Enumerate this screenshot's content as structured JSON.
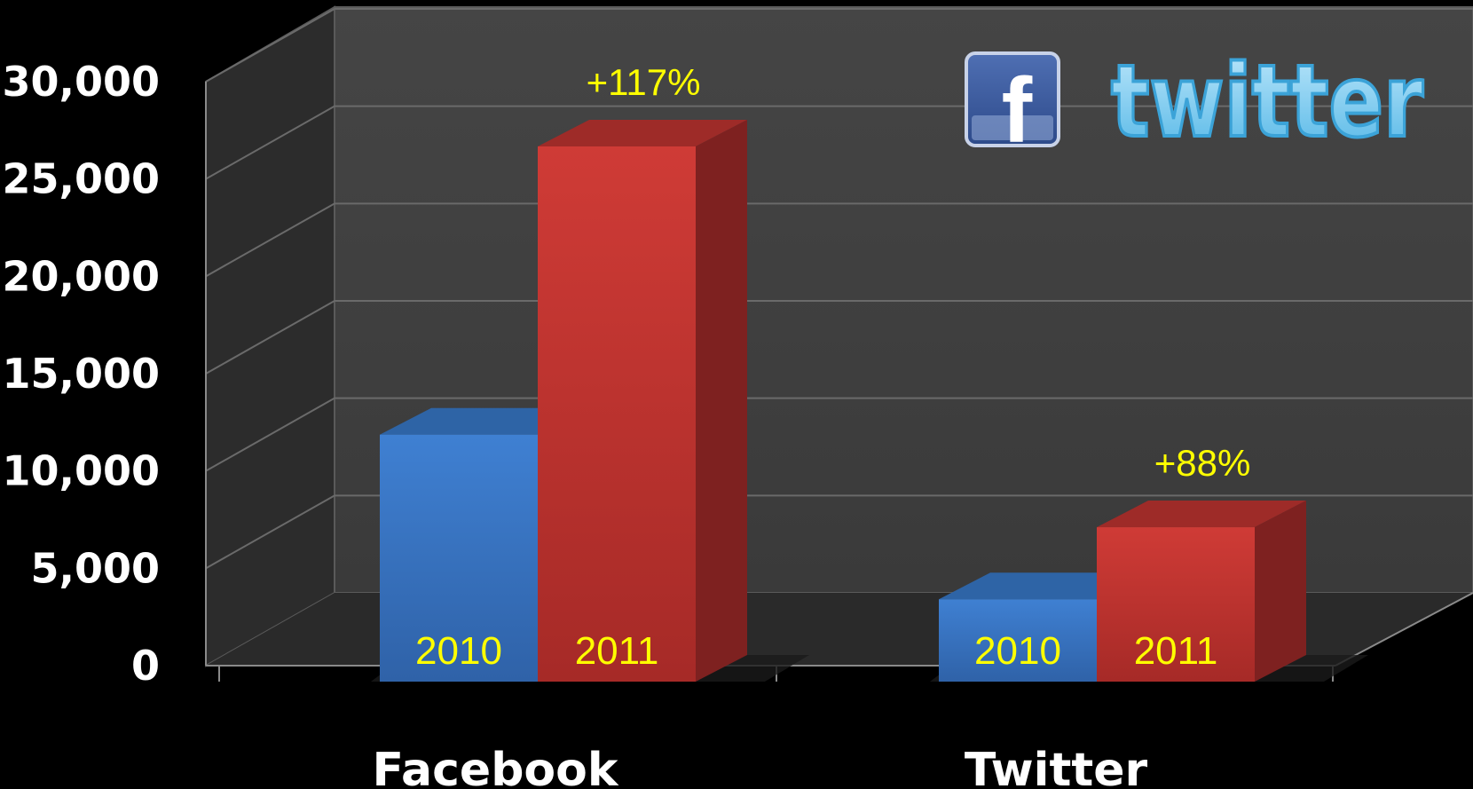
{
  "chart_data": {
    "type": "bar",
    "style": "3d-clustered",
    "categories": [
      "Facebook",
      "Twitter"
    ],
    "series": [
      {
        "name": "2010",
        "values": [
          12000,
          4000
        ],
        "color": "#3a78c8"
      },
      {
        "name": "2011",
        "values": [
          26000,
          7500
        ],
        "color": "#c83232"
      }
    ],
    "bar_labels": {
      "2010": "2010",
      "2011": "2011"
    },
    "annotations": [
      {
        "category": "Facebook",
        "series": "2011",
        "text": "+117%"
      },
      {
        "category": "Twitter",
        "series": "2011",
        "text": "+88%"
      }
    ],
    "yticks": [
      "0",
      "5,000",
      "10,000",
      "15,000",
      "20,000",
      "25,000",
      "30,000"
    ],
    "ylim": [
      0,
      30000
    ],
    "grid": true,
    "annotation_color": "#ffff00",
    "logos": [
      {
        "icon": "facebook-logo-icon",
        "text": "f"
      },
      {
        "icon": "twitter-logo-icon",
        "text": "twitter"
      }
    ]
  }
}
